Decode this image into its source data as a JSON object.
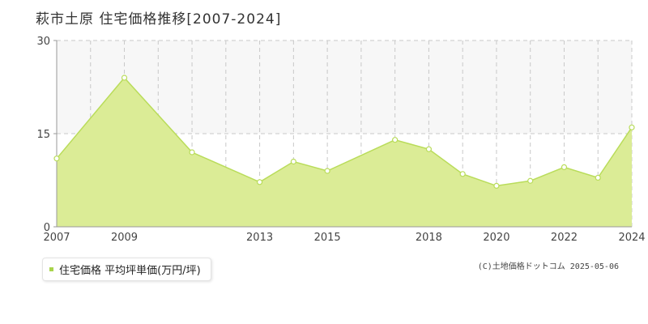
{
  "chart_data": {
    "type": "area",
    "title": "萩市土原 住宅価格推移[2007-2024]",
    "x": [
      2007,
      2009,
      2011,
      2013,
      2014,
      2015,
      2017,
      2018,
      2019,
      2020,
      2021,
      2022,
      2023,
      2024
    ],
    "series": [
      {
        "name": "住宅価格 平均坪単価(万円/坪)",
        "values": [
          11,
          24,
          12,
          7.2,
          10.5,
          9,
          14,
          12.5,
          8.5,
          6.6,
          7.4,
          9.6,
          7.9,
          16
        ]
      }
    ],
    "x_ticks": [
      2007,
      2009,
      2013,
      2015,
      2018,
      2020,
      2022,
      2024
    ],
    "x_grid": [
      2008,
      2009,
      2010,
      2011,
      2012,
      2013,
      2014,
      2015,
      2016,
      2017,
      2018,
      2019,
      2020,
      2021,
      2022,
      2023
    ],
    "y_ticks": [
      0,
      15,
      30
    ],
    "xlim": [
      2007,
      2024
    ],
    "ylim": [
      0,
      30
    ],
    "xlabel": "",
    "ylabel": "",
    "grid": true,
    "legend_position": "bottom-left",
    "colors": {
      "fill": "#dbec96",
      "line": "#b9dc5a",
      "marker_fill": "#ffffff",
      "band": "#f7f7f7",
      "grid": "#c8c8c8",
      "axis": "#999999"
    }
  },
  "footer": {
    "copyright": "(C)土地価格ドットコム 2025-05-06"
  }
}
